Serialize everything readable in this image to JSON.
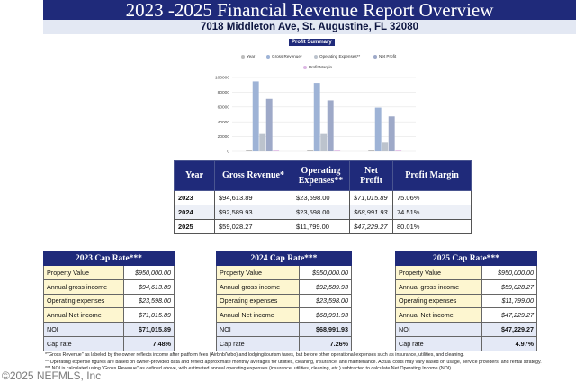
{
  "header": {
    "title": "2023 -2025 Financial Revenue Report Overview",
    "address": "7018 Middleton Ave, St. Augustine, FL 32080"
  },
  "chart_title": "Profit Summary",
  "chart_data": {
    "type": "bar",
    "categories": [
      "",
      "",
      ""
    ],
    "series": [
      {
        "name": "Year",
        "values": [
          2023,
          2024,
          2025
        ]
      },
      {
        "name": "Gross Revenue*",
        "values": [
          94613.89,
          92589.93,
          59028.27
        ]
      },
      {
        "name": "Operating Expenses**",
        "values": [
          23598.0,
          23598.0,
          11799.0
        ]
      },
      {
        "name": "Net Profit",
        "values": [
          71015.89,
          68991.93,
          47229.27
        ]
      },
      {
        "name": "Profit Margin",
        "values": [
          75.06,
          74.51,
          80.01
        ]
      }
    ],
    "ylim": [
      0,
      100000
    ],
    "yticks": [
      "0",
      "20000",
      "40000",
      "60000",
      "80000",
      "100000"
    ],
    "colors": [
      "#bdbdbd",
      "#9eb3d6",
      "#bcc3cd",
      "#9ea9c8",
      "#dcb6e3"
    ],
    "legend": "top"
  },
  "summary": {
    "headers": [
      "Year",
      "Gross Revenue*",
      "Operating Expenses**",
      "Net Profit",
      "Profit Margin"
    ],
    "rows": [
      [
        "2023",
        "$94,613.89",
        "$23,598.00",
        "$71,015.89",
        "75.06%"
      ],
      [
        "2024",
        "$92,589.93",
        "$23,598.00",
        "$68,991.93",
        "74.51%"
      ],
      [
        "2025",
        "$59,028.27",
        "$11,799.00",
        "$47,229.27",
        "80.01%"
      ]
    ]
  },
  "cap_tables": [
    {
      "title": "2023 Cap Rate***",
      "rows": [
        [
          "Property Value",
          "$950,000.00"
        ],
        [
          "Annual gross income",
          "$94,613.89"
        ],
        [
          "Operating expenses",
          "$23,598.00"
        ],
        [
          "Annual Net income",
          "$71,015.89"
        ],
        [
          "NOI",
          "$71,015.89"
        ],
        [
          "Cap rate",
          "7.48%"
        ]
      ]
    },
    {
      "title": "2024 Cap Rate***",
      "rows": [
        [
          "Property Value",
          "$950,000.00"
        ],
        [
          "Annual gross income",
          "$92,589.93"
        ],
        [
          "Operating expenses",
          "$23,598.00"
        ],
        [
          "Annual Net income",
          "$68,991.93"
        ],
        [
          "NOI",
          "$68,991.93"
        ],
        [
          "Cap rate",
          "7.26%"
        ]
      ]
    },
    {
      "title": "2025 Cap Rate***",
      "rows": [
        [
          "Property Value",
          "$950,000.00"
        ],
        [
          "Annual gross income",
          "$59,028.27"
        ],
        [
          "Operating expenses",
          "$11,799.00"
        ],
        [
          "Annual Net income",
          "$47,229.27"
        ],
        [
          "NOI",
          "$47,229.27"
        ],
        [
          "Cap rate",
          "4.97%"
        ]
      ]
    }
  ],
  "notes": [
    "*\"Gross Revenue\" as labeled by the owner reflects income after platform fees (Airbnb/Vrbo) and lodging/tourism taxes, but before other operational expenses such as insurance, utilities, and cleaning.",
    "** Operating expense figures are based on owner-provided data and reflect approximate monthly averages for utilities, cleaning, insurance, and maintenance. Actual costs may vary based on usage, service providers, and rental strategy.",
    "*** NOI is calculated using \"Gross Revenue\" as defined above, with estimated annual operating expenses (insurance, utilities, cleaning, etc.) subtracted to calculate Net Operating Income (NOI)."
  ],
  "watermark": "©2025 NEFMLS, Inc"
}
